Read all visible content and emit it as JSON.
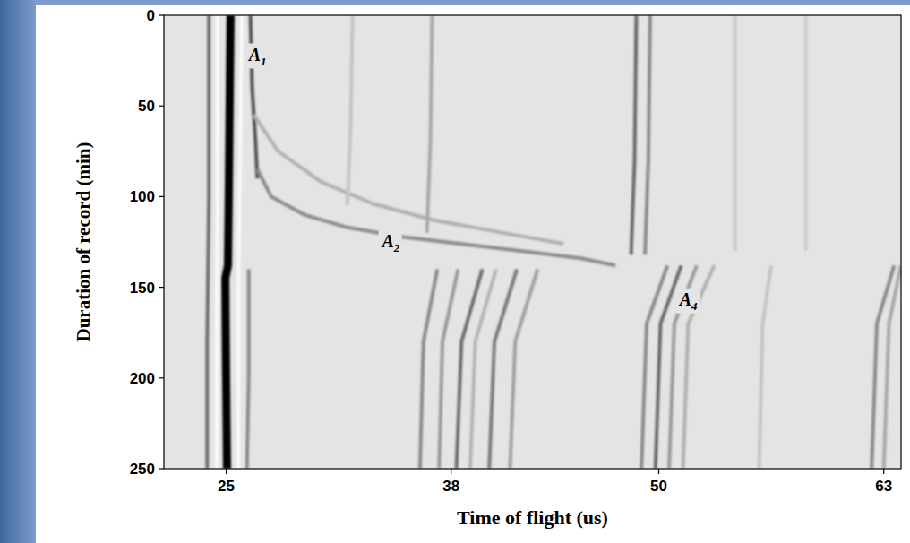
{
  "chart_data": {
    "type": "line",
    "x_label": "Time of flight (us)",
    "y_label": "Duration of record (min)",
    "xlim": [
      21.4,
      64.0
    ],
    "xticks": [
      25,
      38,
      50,
      63
    ],
    "ylim": [
      250,
      0
    ],
    "yticks": [
      0,
      50,
      100,
      150,
      200,
      250
    ],
    "grid": false,
    "series": [
      {
        "x": [
          25.25,
          25.2,
          25.15,
          25.1,
          24.95,
          25.0,
          25.05
        ],
        "values": [
          0,
          50,
          100,
          138,
          145,
          200,
          250
        ],
        "color": "#000000",
        "line_style": "bold"
      },
      {
        "x": [
          24.0,
          24.0,
          23.9,
          23.9
        ],
        "values": [
          0,
          100,
          180,
          250
        ],
        "color": "#6e6e6e",
        "line_style": "solid"
      },
      {
        "x": [
          24.5,
          24.5,
          24.45,
          24.45
        ],
        "values": [
          0,
          100,
          180,
          250
        ],
        "color": "#fafafa",
        "line_style": "solid"
      },
      {
        "x": [
          25.9,
          25.8,
          25.7,
          25.7
        ],
        "values": [
          0,
          80,
          150,
          250
        ],
        "color": "#fafafa",
        "line_style": "solid"
      },
      {
        "x": [
          26.4,
          26.5,
          26.7,
          26.8
        ],
        "values": [
          0,
          40,
          70,
          90
        ],
        "color": "#555555",
        "line_style": "solid"
      },
      {
        "x": [
          26.3,
          26.3,
          26.2
        ],
        "values": [
          140,
          200,
          250
        ],
        "color": "#8a8a8a",
        "line_style": "solid"
      },
      {
        "x": [
          26.8,
          27.6,
          29.5,
          32,
          35,
          38.5,
          42,
          45.5,
          47.5
        ],
        "values": [
          85,
          100,
          110,
          117,
          122,
          126,
          130,
          134,
          138
        ],
        "color": "#8c8c8c",
        "line_style": "solid"
      },
      {
        "x": [
          26.6,
          28,
          30.5,
          33.5,
          37,
          41,
          44.5
        ],
        "values": [
          55,
          75,
          92,
          104,
          113,
          120,
          126
        ],
        "color": "#b0b0b0",
        "line_style": "solid"
      },
      {
        "x": [
          32.3,
          32.2,
          32.0
        ],
        "values": [
          0,
          60,
          105
        ],
        "color": "#c4c4c4",
        "line_style": "solid"
      },
      {
        "x": [
          36.9,
          36.8,
          36.6
        ],
        "values": [
          0,
          70,
          120
        ],
        "color": "#a8a8a8",
        "line_style": "solid"
      },
      {
        "x": [
          48.7,
          48.6,
          48.4
        ],
        "values": [
          0,
          80,
          132
        ],
        "color": "#6a6a6a",
        "line_style": "solid"
      },
      {
        "x": [
          49.5,
          49.4,
          49.2
        ],
        "values": [
          0,
          80,
          132
        ],
        "color": "#8a8a8a",
        "line_style": "solid"
      },
      {
        "x": [
          54.4,
          54.4
        ],
        "values": [
          0,
          130
        ],
        "color": "#c8c8c8",
        "line_style": "solid"
      },
      {
        "x": [
          58.5,
          58.5
        ],
        "values": [
          0,
          130
        ],
        "color": "#cccccc",
        "line_style": "solid"
      },
      {
        "x": [
          37.2,
          36.4,
          36.2
        ],
        "values": [
          140,
          180,
          250
        ],
        "color": "#8a8a8a",
        "line_style": "solid"
      },
      {
        "x": [
          38.4,
          37.5,
          37.3
        ],
        "values": [
          140,
          180,
          250
        ],
        "color": "#9a9a9a",
        "line_style": "solid"
      },
      {
        "x": [
          39.8,
          38.6,
          38.3
        ],
        "values": [
          140,
          180,
          250
        ],
        "color": "#6e6e6e",
        "line_style": "solid"
      },
      {
        "x": [
          40.6,
          39.4,
          39.1
        ],
        "values": [
          140,
          180,
          250
        ],
        "color": "#b4b4b4",
        "line_style": "solid"
      },
      {
        "x": [
          41.8,
          40.5,
          40.2
        ],
        "values": [
          140,
          180,
          250
        ],
        "color": "#7a7a7a",
        "line_style": "solid"
      },
      {
        "x": [
          43.0,
          41.7,
          41.4
        ],
        "values": [
          140,
          180,
          250
        ],
        "color": "#a0a0a0",
        "line_style": "solid"
      },
      {
        "x": [
          50.5,
          49.3,
          49.0
        ],
        "values": [
          138,
          170,
          250
        ],
        "color": "#8a8a8a",
        "line_style": "solid"
      },
      {
        "x": [
          51.3,
          50.1,
          49.8
        ],
        "values": [
          138,
          170,
          250
        ],
        "color": "#6a6a6a",
        "line_style": "solid"
      },
      {
        "x": [
          52.2,
          50.9,
          50.6
        ],
        "values": [
          138,
          170,
          250
        ],
        "color": "#9a9a9a",
        "line_style": "solid"
      },
      {
        "x": [
          53.2,
          51.7,
          51.4
        ],
        "values": [
          138,
          170,
          250
        ],
        "color": "#b0b0b0",
        "line_style": "solid"
      },
      {
        "x": [
          56.5,
          56.0,
          55.8
        ],
        "values": [
          138,
          170,
          250
        ],
        "color": "#c4c4c4",
        "line_style": "solid"
      },
      {
        "x": [
          63.6,
          62.6,
          62.3
        ],
        "values": [
          138,
          170,
          250
        ],
        "color": "#8a8a8a",
        "line_style": "solid"
      },
      {
        "x": [
          64.0,
          63.3,
          63.0
        ],
        "values": [
          138,
          170,
          250
        ],
        "color": "#a8a8a8",
        "line_style": "solid"
      }
    ],
    "annotations": [
      {
        "text": "A",
        "sub": "1",
        "x": 26.3,
        "y": 25
      },
      {
        "text": "A",
        "sub": "2",
        "x": 34.0,
        "y": 128
      },
      {
        "text": "A",
        "sub": "4",
        "x": 51.2,
        "y": 160
      }
    ]
  }
}
